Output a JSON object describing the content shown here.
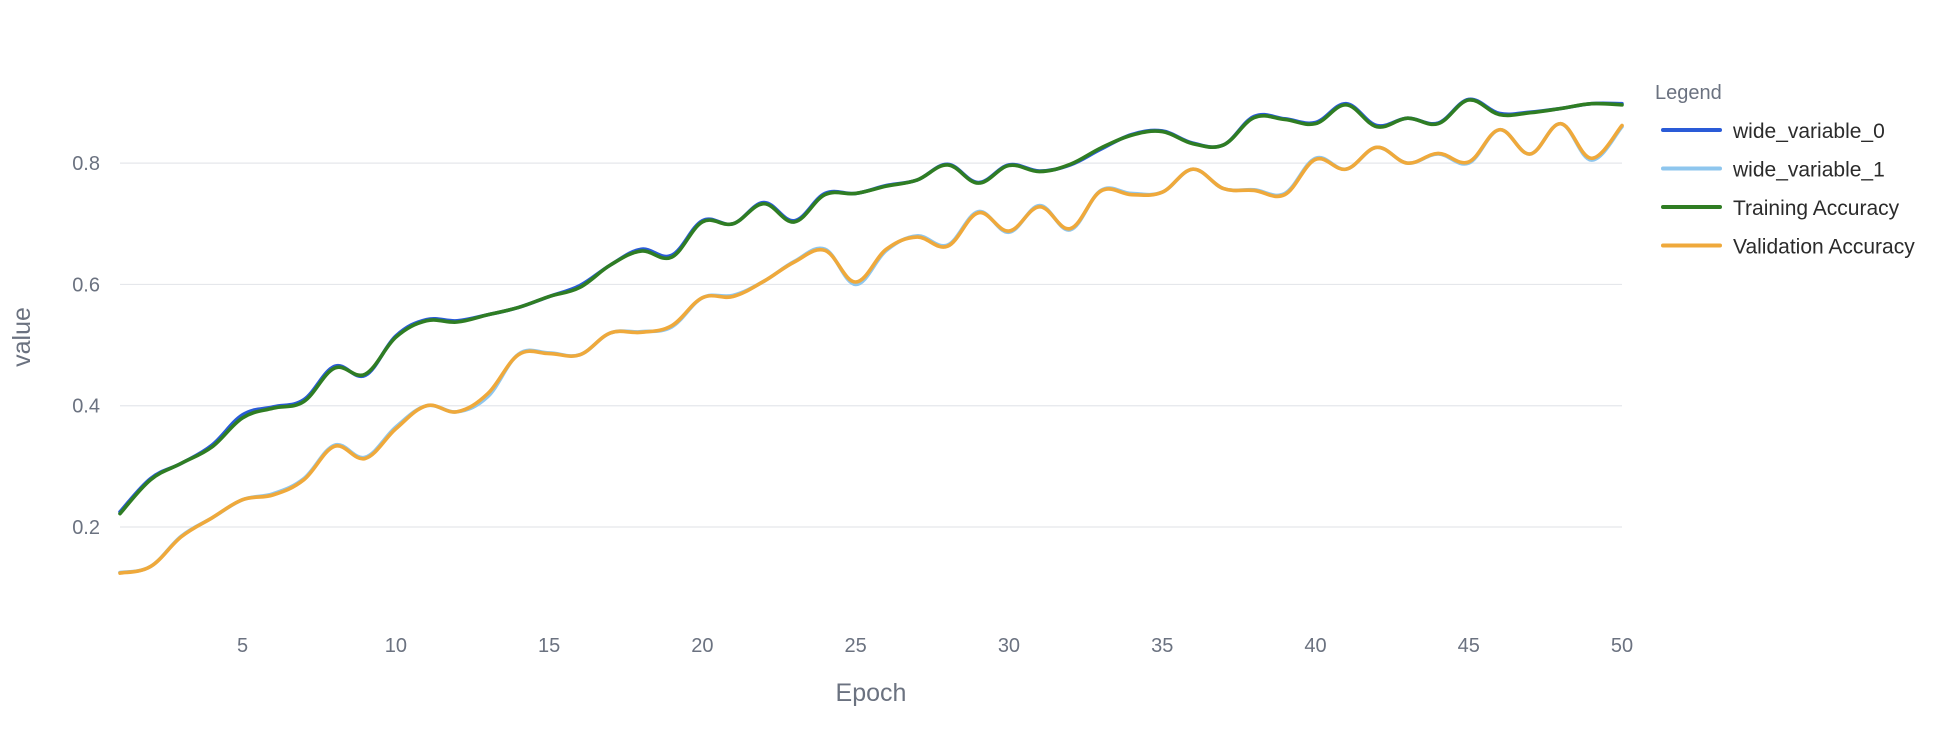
{
  "chart_data": {
    "type": "line",
    "xlabel": "Epoch",
    "ylabel": "value",
    "xlim": [
      1,
      50
    ],
    "ylim": [
      0.05,
      0.97
    ],
    "xticks": [
      5,
      10,
      15,
      20,
      25,
      30,
      35,
      40,
      45,
      50
    ],
    "yticks": [
      0.2,
      0.4,
      0.6,
      0.8
    ],
    "ytick_labels": [
      "0.2",
      "0.4",
      "0.6",
      "0.8"
    ],
    "grid": "horizontal",
    "legend": {
      "title": "Legend",
      "placement": "right"
    },
    "x": [
      1,
      2,
      3,
      4,
      5,
      6,
      7,
      8,
      9,
      10,
      11,
      12,
      13,
      14,
      15,
      16,
      17,
      18,
      19,
      20,
      21,
      22,
      23,
      24,
      25,
      26,
      27,
      28,
      29,
      30,
      31,
      32,
      33,
      34,
      35,
      36,
      37,
      38,
      39,
      40,
      41,
      42,
      43,
      44,
      45,
      46,
      47,
      48,
      49,
      50
    ],
    "series": [
      {
        "name": "wide_variable_0",
        "color": "#2a5bd7",
        "values": [
          0.225,
          0.28,
          0.305,
          0.335,
          0.385,
          0.398,
          0.41,
          0.465,
          0.45,
          0.515,
          0.542,
          0.54,
          0.55,
          0.562,
          0.58,
          0.598,
          0.632,
          0.658,
          0.648,
          0.705,
          0.7,
          0.735,
          0.705,
          0.75,
          0.75,
          0.763,
          0.772,
          0.798,
          0.768,
          0.797,
          0.787,
          0.797,
          0.823,
          0.847,
          0.853,
          0.833,
          0.83,
          0.877,
          0.873,
          0.867,
          0.898,
          0.862,
          0.874,
          0.866,
          0.905,
          0.882,
          0.884,
          0.89,
          0.898,
          0.898
        ]
      },
      {
        "name": "wide_variable_1",
        "color": "#8ec6ee",
        "values": [
          0.125,
          0.135,
          0.185,
          0.215,
          0.245,
          0.255,
          0.28,
          0.335,
          0.315,
          0.365,
          0.4,
          0.39,
          0.415,
          0.485,
          0.487,
          0.484,
          0.52,
          0.522,
          0.53,
          0.578,
          0.582,
          0.605,
          0.638,
          0.658,
          0.6,
          0.656,
          0.68,
          0.665,
          0.72,
          0.686,
          0.73,
          0.69,
          0.755,
          0.75,
          0.752,
          0.79,
          0.758,
          0.756,
          0.75,
          0.808,
          0.79,
          0.826,
          0.8,
          0.815,
          0.8,
          0.855,
          0.815,
          0.865,
          0.805,
          0.86
        ]
      },
      {
        "name": "Training Accuracy",
        "color": "#2f7d23",
        "values": [
          0.222,
          0.278,
          0.305,
          0.332,
          0.38,
          0.396,
          0.407,
          0.462,
          0.452,
          0.513,
          0.54,
          0.538,
          0.55,
          0.562,
          0.58,
          0.595,
          0.632,
          0.655,
          0.645,
          0.703,
          0.7,
          0.733,
          0.703,
          0.748,
          0.75,
          0.762,
          0.772,
          0.797,
          0.767,
          0.796,
          0.786,
          0.798,
          0.825,
          0.846,
          0.852,
          0.832,
          0.83,
          0.875,
          0.872,
          0.865,
          0.896,
          0.86,
          0.874,
          0.865,
          0.904,
          0.88,
          0.883,
          0.89,
          0.898,
          0.896
        ]
      },
      {
        "name": "Validation Accuracy",
        "color": "#efa93b",
        "values": [
          0.124,
          0.135,
          0.184,
          0.215,
          0.245,
          0.253,
          0.278,
          0.333,
          0.313,
          0.362,
          0.4,
          0.39,
          0.42,
          0.484,
          0.486,
          0.484,
          0.52,
          0.521,
          0.532,
          0.578,
          0.58,
          0.605,
          0.637,
          0.656,
          0.604,
          0.658,
          0.678,
          0.663,
          0.718,
          0.688,
          0.728,
          0.692,
          0.754,
          0.748,
          0.752,
          0.79,
          0.758,
          0.755,
          0.748,
          0.806,
          0.79,
          0.826,
          0.8,
          0.816,
          0.802,
          0.855,
          0.815,
          0.865,
          0.808,
          0.862
        ]
      }
    ]
  }
}
